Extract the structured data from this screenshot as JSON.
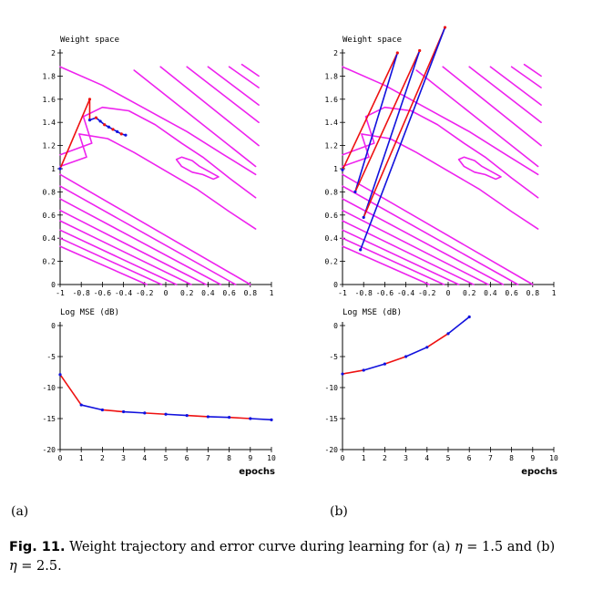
{
  "figure": {
    "panel_a_label": "(a)",
    "panel_b_label": "(b)",
    "caption_label": "Fig. 11.",
    "caption_text": "Weight trajectory and error curve during learning for (a) η = 1.5 and (b) η = 2.5.",
    "caption_parts": {
      "t1": "Weight trajectory and error curve during learning for (a) ",
      "eta1": "η",
      "t2": " = 1.5 and (b)",
      "eta2": "η",
      "t3": " = 2.5."
    }
  },
  "colors": {
    "contour": "#ee22ee",
    "trajectory_red": "#ee1111",
    "trajectory_blue": "#1111dd",
    "axes": "#000000"
  },
  "chart_data": [
    {
      "id": "a-weight",
      "type": "line",
      "title": "Weight space",
      "xlim": [
        -1,
        1
      ],
      "ylim": [
        0,
        2
      ],
      "xticks": [
        "-1",
        "-0.8",
        "-0.6",
        "-0.4",
        "-0.2",
        "0",
        "0.2",
        "0.4",
        "0.6",
        "0.8",
        "1"
      ],
      "yticks": [
        "0",
        "0.2",
        "0.4",
        "0.6",
        "0.8",
        "1",
        "1.2",
        "1.4",
        "1.6",
        "1.8",
        "2"
      ],
      "trajectory": {
        "x": [
          -1.0,
          -0.72,
          -0.72,
          -0.66,
          -0.62,
          -0.58,
          -0.54,
          -0.5,
          -0.46,
          -0.42,
          -0.38
        ],
        "y": [
          1.0,
          1.6,
          1.42,
          1.44,
          1.41,
          1.38,
          1.36,
          1.34,
          1.32,
          1.3,
          1.29
        ]
      }
    },
    {
      "id": "a-mse",
      "type": "line",
      "title": "Log MSE (dB)",
      "xlabel": "epochs",
      "xlim": [
        0,
        10
      ],
      "ylim": [
        -20,
        0
      ],
      "xticks": [
        "0",
        "1",
        "2",
        "3",
        "4",
        "5",
        "6",
        "7",
        "8",
        "9",
        "10"
      ],
      "yticks": [
        "0",
        "-5",
        "-10",
        "-15",
        "-20"
      ],
      "x": [
        0,
        1,
        2,
        3,
        4,
        5,
        6,
        7,
        8,
        9,
        10
      ],
      "y": [
        -7.9,
        -12.8,
        -13.6,
        -13.9,
        -14.1,
        -14.3,
        -14.5,
        -14.7,
        -14.8,
        -15.0,
        -15.2
      ]
    },
    {
      "id": "b-weight",
      "type": "line",
      "title": "Weight space",
      "xlim": [
        -1,
        1
      ],
      "ylim": [
        0,
        2
      ],
      "xticks": [
        "-1",
        "-0.8",
        "-0.6",
        "-0.4",
        "-0.2",
        "0",
        "0.2",
        "0.4",
        "0.6",
        "0.8",
        "1"
      ],
      "yticks": [
        "0",
        "0.2",
        "0.4",
        "0.6",
        "0.8",
        "1",
        "1.2",
        "1.4",
        "1.6",
        "1.8",
        "2"
      ],
      "trajectory": {
        "x": [
          -1.0,
          -0.48,
          -0.88,
          -0.27,
          -0.8,
          -0.03,
          -0.83
        ],
        "y": [
          0.99,
          2.0,
          0.8,
          2.02,
          0.58,
          2.22,
          0.3
        ]
      }
    },
    {
      "id": "b-mse",
      "type": "line",
      "title": "Log MSE (dB)",
      "xlabel": "epochs",
      "xlim": [
        0,
        10
      ],
      "ylim": [
        -20,
        0
      ],
      "xticks": [
        "0",
        "1",
        "2",
        "3",
        "4",
        "5",
        "6",
        "7",
        "8",
        "9",
        "10"
      ],
      "yticks": [
        "0",
        "-5",
        "-10",
        "-15",
        "-20"
      ],
      "x": [
        0,
        1,
        2,
        3,
        4,
        5,
        6
      ],
      "y": [
        -7.8,
        -7.2,
        -6.2,
        -5.0,
        -3.5,
        -1.3,
        1.4
      ]
    }
  ]
}
